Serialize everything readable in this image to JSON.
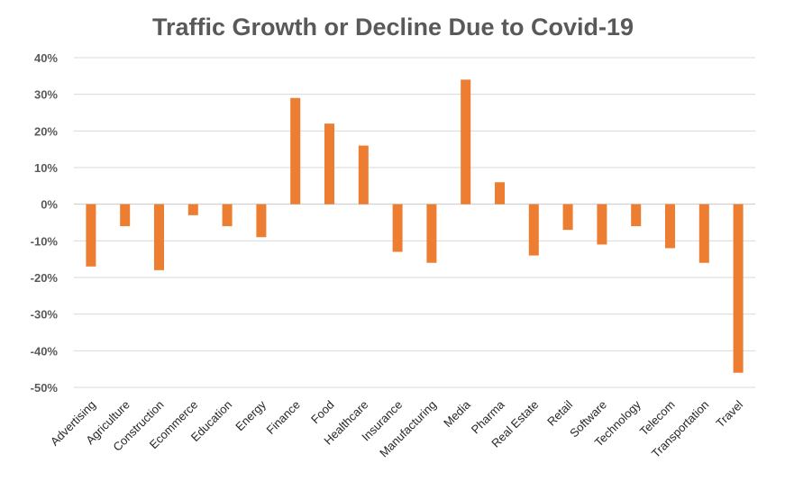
{
  "chart_data": {
    "type": "bar",
    "title": "Traffic Growth or Decline Due to Covid-19",
    "xlabel": "",
    "ylabel": "",
    "ylim": [
      -50,
      40
    ],
    "yticks": [
      40,
      30,
      20,
      10,
      0,
      -10,
      -20,
      -30,
      -40,
      -50
    ],
    "ytick_labels": [
      "40%",
      "30%",
      "20%",
      "10%",
      "0%",
      "-10%",
      "-20%",
      "-30%",
      "-40%",
      "-50%"
    ],
    "categories": [
      "Advertising",
      "Agriculture",
      "Construction",
      "Ecommerce",
      "Education",
      "Energy",
      "Finance",
      "Food",
      "Healthcare",
      "Insurance",
      "Manufacturing",
      "Media",
      "Pharma",
      "Real Estate",
      "Retail",
      "Software",
      "Technology",
      "Telecom",
      "Transportation",
      "Travel"
    ],
    "values": [
      -17,
      -6,
      -18,
      -3,
      -6,
      -9,
      29,
      22,
      16,
      -13,
      -16,
      34,
      6,
      -14,
      -7,
      -11,
      -6,
      -12,
      -16,
      -46
    ],
    "grid": true,
    "legend": "none",
    "bar_color": "#ED7D31"
  }
}
